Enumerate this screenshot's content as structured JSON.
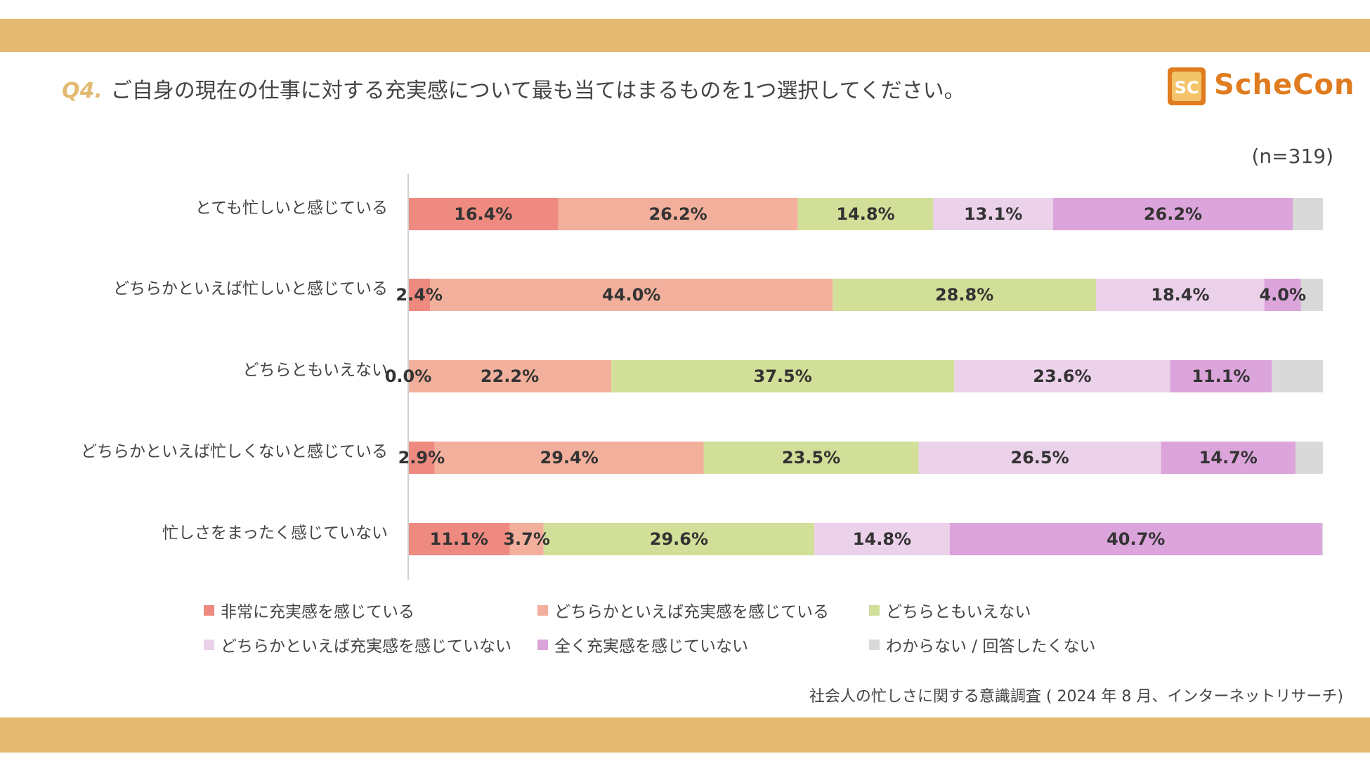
{
  "question": {
    "number": "Q4.",
    "text": "ご自身の現在の仕事に対する充実感について最も当てはまるものを1つ選択してください。"
  },
  "logo": {
    "mark_text": "SC",
    "text": "ScheCon"
  },
  "sample_size": "(n=319)",
  "source": "社会人の忙しさに関する意識調査 ( 2024 年 8 月、インターネットリサーチ)",
  "colors": {
    "band": "#E4BA72",
    "accent": "#E4BA72",
    "logo": "#E07B1F"
  },
  "chart_data": {
    "type": "bar",
    "orientation": "horizontal",
    "stacked": true,
    "normalized": true,
    "xlim": [
      0,
      100
    ],
    "unit": "%",
    "categories": [
      "とても忙しいと感じている",
      "どちらかといえば忙しいと感じている",
      "どちらともいえない",
      "どちらかといえば忙しくないと感じている",
      "忙しさをまったく感じていない"
    ],
    "series": [
      {
        "name": "非常に充実感を感じている",
        "color": "#EE8A80",
        "values": [
          16.4,
          2.4,
          0.0,
          2.9,
          11.1
        ],
        "labels": [
          "16.4%",
          "2.4%",
          "0.0%",
          "2.9%",
          "11.1%"
        ]
      },
      {
        "name": "どちらかといえば充実感を感じている",
        "color": "#F2B09C",
        "values": [
          26.2,
          44.0,
          22.2,
          29.4,
          3.7
        ],
        "labels": [
          "26.2%",
          "44.0%",
          "22.2%",
          "29.4%",
          "3.7%"
        ]
      },
      {
        "name": "どちらともいえない",
        "color": "#D1DF98",
        "values": [
          14.8,
          28.8,
          37.5,
          23.5,
          29.6
        ],
        "labels": [
          "14.8%",
          "28.8%",
          "37.5%",
          "23.5%",
          "29.6%"
        ]
      },
      {
        "name": "どちらかといえば充実感を感じていない",
        "color": "#EBD1EA",
        "values": [
          13.1,
          18.4,
          23.6,
          26.5,
          14.8
        ],
        "labels": [
          "13.1%",
          "18.4%",
          "23.6%",
          "26.5%",
          "14.8%"
        ]
      },
      {
        "name": "全く充実感を感じていない",
        "color": "#DBA4DA",
        "values": [
          26.2,
          4.0,
          11.1,
          14.7,
          40.7
        ],
        "labels": [
          "26.2%",
          "4.0%",
          "11.1%",
          "14.7%",
          "40.7%"
        ]
      },
      {
        "name": "わからない / 回答したくない",
        "color": "#D9D9D9",
        "values": [
          3.3,
          2.4,
          5.6,
          2.9,
          0.0
        ],
        "labels": [
          "",
          "",
          "",
          "",
          ""
        ]
      }
    ],
    "legend_position": "bottom",
    "grid": false
  }
}
